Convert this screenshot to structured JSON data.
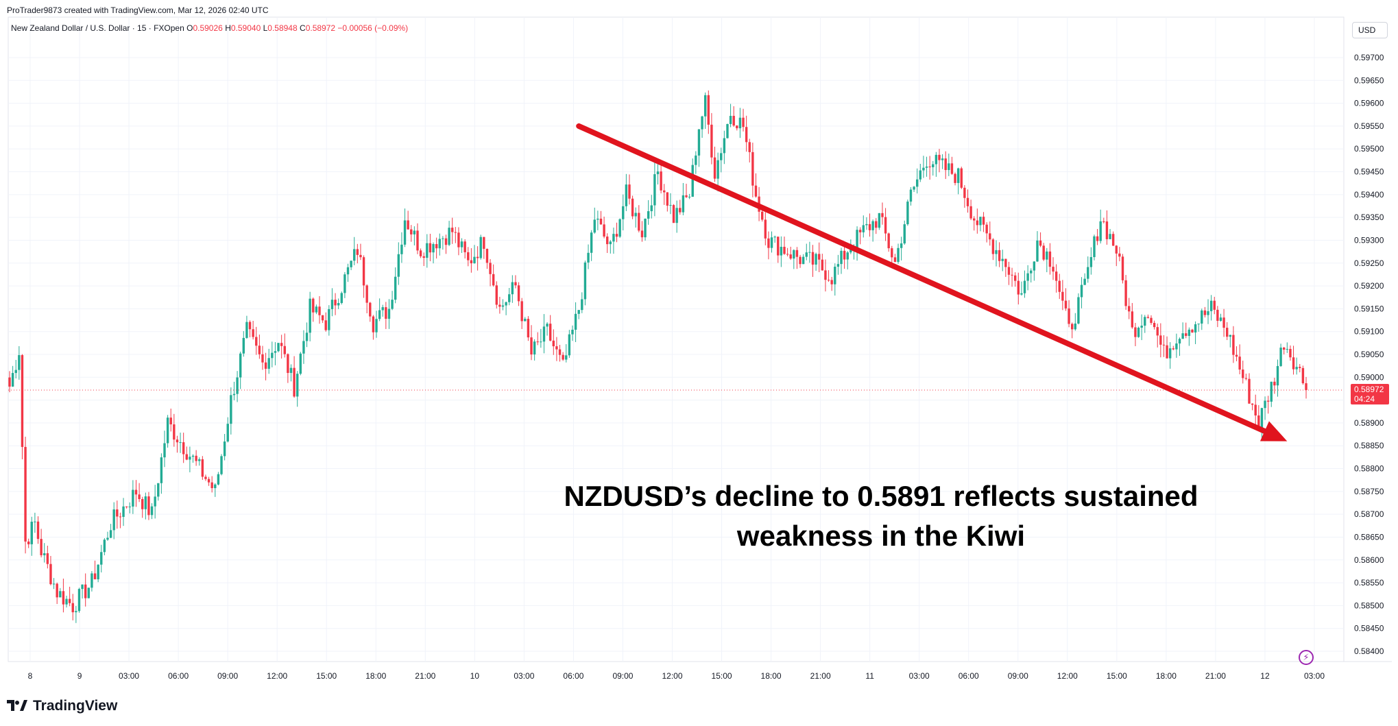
{
  "header": {
    "credit": "ProTrader9873 created with TradingView.com, Mar 12, 2026 02:40 UTC",
    "symbol": "New Zealand Dollar / U.S. Dollar · 15 · FXOpen",
    "open_label": "O",
    "open_value": "0.59026",
    "high_label": "H",
    "high_value": "0.59040",
    "low_label": "L",
    "low_value": "0.58948",
    "close_label": "C",
    "close_value": "0.58972",
    "change": "−0.00056 (−0.09%)"
  },
  "currency": "USD",
  "annotation_text": "NZDUSD’s decline to 0.5891 reflects sustained weakness in the Kiwi",
  "logo_text": "TradingView",
  "colors": {
    "up": "#22ab94",
    "down": "#f23645",
    "arrow": "#e0141e",
    "grid": "#f0f3fa"
  },
  "chart_data": {
    "type": "candlestick",
    "ylim": [
      0.5838,
      0.5972
    ],
    "y_ticks": [
      "0.59700",
      "0.59650",
      "0.59600",
      "0.59550",
      "0.59500",
      "0.59450",
      "0.59400",
      "0.59350",
      "0.59300",
      "0.59250",
      "0.59200",
      "0.59150",
      "0.59100",
      "0.59050",
      "0.59000",
      "0.58950",
      "0.58900",
      "0.58850",
      "0.58800",
      "0.58750",
      "0.58700",
      "0.58650",
      "0.58600",
      "0.58550",
      "0.58500",
      "0.58450",
      "0.58400"
    ],
    "x_ticks": [
      "8",
      "9",
      "03:00",
      "06:00",
      "09:00",
      "12:00",
      "15:00",
      "18:00",
      "21:00",
      "10",
      "03:00",
      "06:00",
      "09:00",
      "12:00",
      "15:00",
      "18:00",
      "21:00",
      "11",
      "03:00",
      "06:00",
      "09:00",
      "12:00",
      "15:00",
      "18:00",
      "21:00",
      "12",
      "03:00"
    ],
    "last_price": "0.58972",
    "countdown": "04:24",
    "close_path": [
      [
        0,
        0.5898
      ],
      [
        3,
        0.5906
      ],
      [
        5,
        0.5864
      ],
      [
        8,
        0.5868
      ],
      [
        10,
        0.5862
      ],
      [
        15,
        0.5853
      ],
      [
        20,
        0.585
      ],
      [
        26,
        0.5855
      ],
      [
        32,
        0.5868
      ],
      [
        40,
        0.5875
      ],
      [
        45,
        0.587
      ],
      [
        50,
        0.589
      ],
      [
        55,
        0.5885
      ],
      [
        60,
        0.588
      ],
      [
        65,
        0.5875
      ],
      [
        70,
        0.5895
      ],
      [
        75,
        0.591
      ],
      [
        80,
        0.5903
      ],
      [
        85,
        0.5908
      ],
      [
        90,
        0.5898
      ],
      [
        95,
        0.5915
      ],
      [
        100,
        0.5912
      ],
      [
        105,
        0.592
      ],
      [
        110,
        0.5928
      ],
      [
        115,
        0.5912
      ],
      [
        120,
        0.5915
      ],
      [
        125,
        0.5935
      ],
      [
        130,
        0.5928
      ],
      [
        135,
        0.593
      ],
      [
        140,
        0.5932
      ],
      [
        145,
        0.5925
      ],
      [
        150,
        0.593
      ],
      [
        155,
        0.5915
      ],
      [
        160,
        0.592
      ],
      [
        165,
        0.5905
      ],
      [
        170,
        0.591
      ],
      [
        175,
        0.5902
      ],
      [
        180,
        0.5915
      ],
      [
        185,
        0.5935
      ],
      [
        190,
        0.5928
      ],
      [
        195,
        0.594
      ],
      [
        200,
        0.5932
      ],
      [
        205,
        0.5945
      ],
      [
        210,
        0.5935
      ],
      [
        215,
        0.594
      ],
      [
        218,
        0.5955
      ],
      [
        220,
        0.596
      ],
      [
        223,
        0.5945
      ],
      [
        228,
        0.5958
      ],
      [
        232,
        0.5955
      ],
      [
        236,
        0.594
      ],
      [
        240,
        0.593
      ],
      [
        245,
        0.5928
      ],
      [
        250,
        0.5926
      ],
      [
        255,
        0.5925
      ],
      [
        260,
        0.5922
      ],
      [
        265,
        0.5928
      ],
      [
        270,
        0.5932
      ],
      [
        275,
        0.5935
      ],
      [
        280,
        0.5925
      ],
      [
        285,
        0.594
      ],
      [
        290,
        0.5948
      ],
      [
        295,
        0.5946
      ],
      [
        300,
        0.5944
      ],
      [
        305,
        0.5935
      ],
      [
        310,
        0.593
      ],
      [
        315,
        0.5925
      ],
      [
        320,
        0.5918
      ],
      [
        325,
        0.593
      ],
      [
        330,
        0.5925
      ],
      [
        335,
        0.591
      ],
      [
        340,
        0.592
      ],
      [
        345,
        0.5935
      ],
      [
        350,
        0.5928
      ],
      [
        355,
        0.591
      ],
      [
        360,
        0.5915
      ],
      [
        365,
        0.5905
      ],
      [
        370,
        0.591
      ],
      [
        375,
        0.5912
      ],
      [
        380,
        0.5915
      ],
      [
        385,
        0.591
      ],
      [
        390,
        0.59
      ],
      [
        395,
        0.589
      ],
      [
        400,
        0.59
      ],
      [
        403,
        0.5908
      ],
      [
        406,
        0.5904
      ],
      [
        410,
        0.5898
      ]
    ],
    "trend_arrow": {
      "from": [
        180,
        0.5955
      ],
      "to": [
        404,
        0.5886
      ]
    }
  }
}
